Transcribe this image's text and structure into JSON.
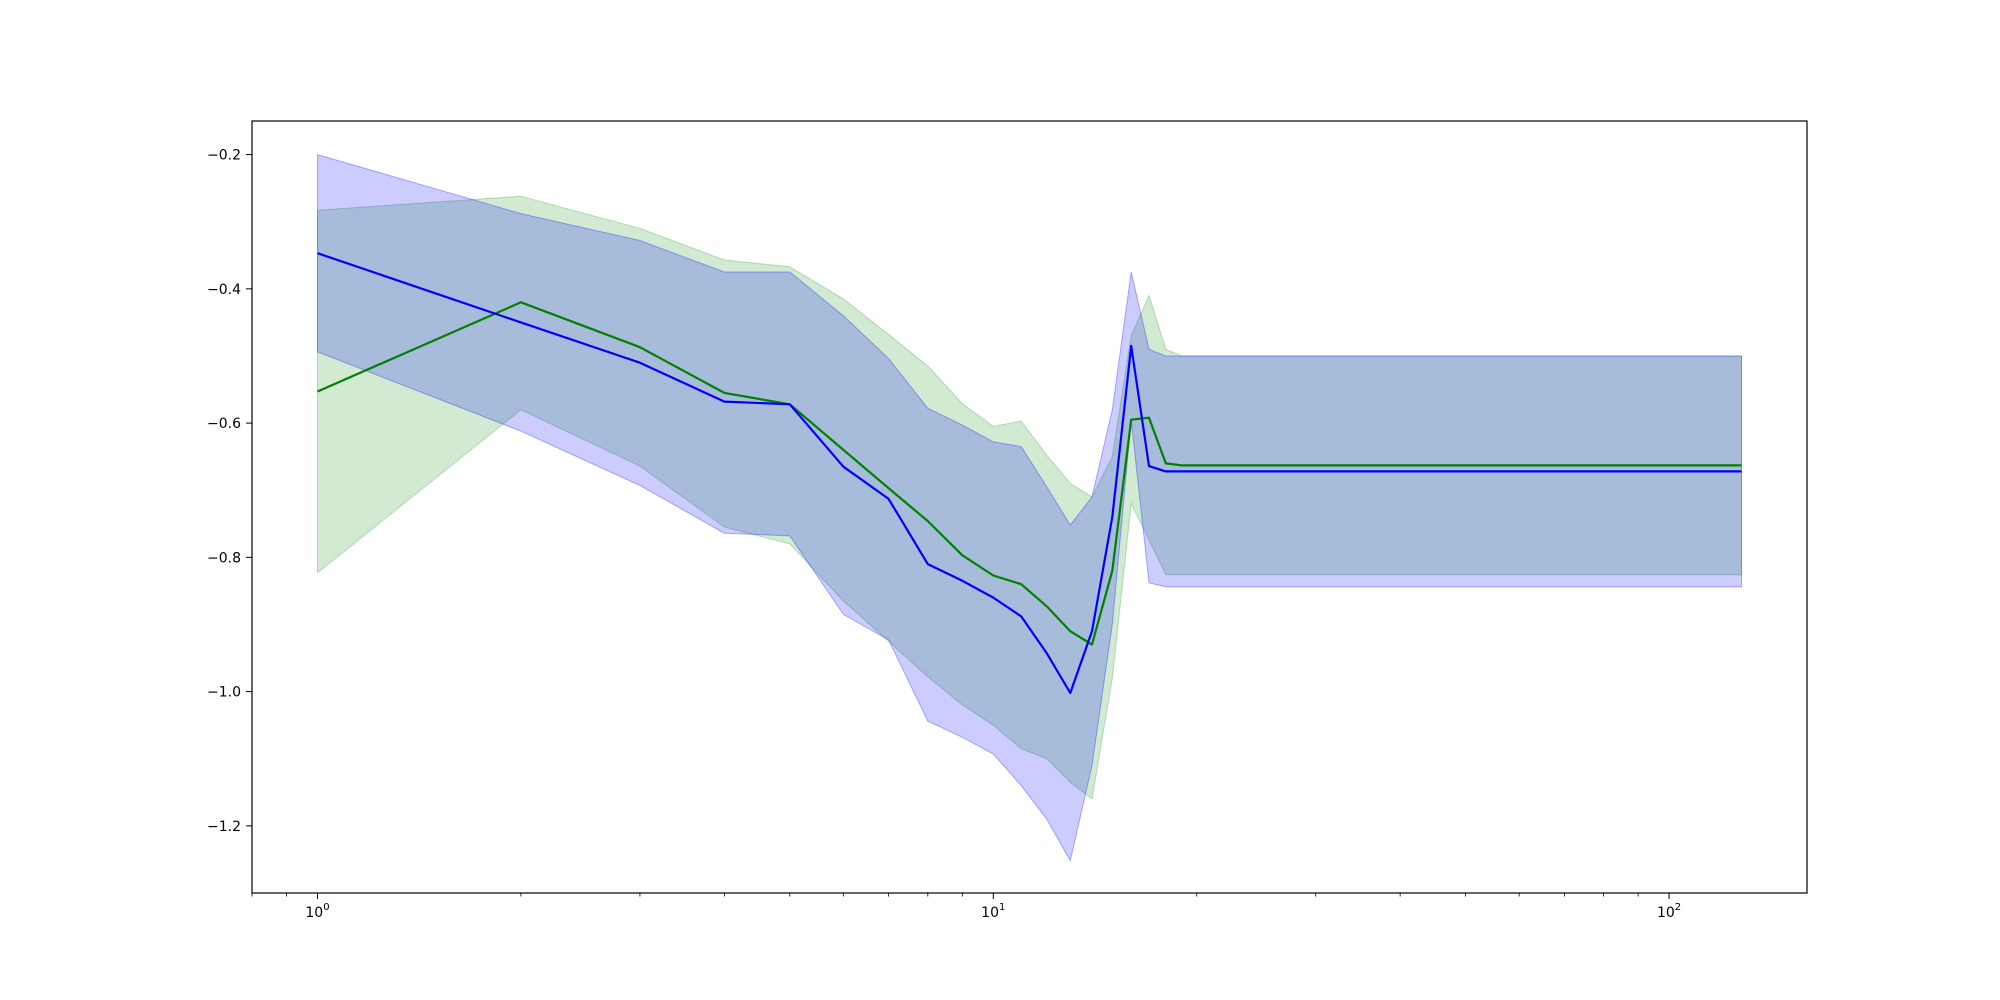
{
  "chart_data": {
    "type": "line",
    "title": "",
    "xlabel": "",
    "ylabel": "",
    "xscale": "log",
    "xlim": [
      0.8,
      160
    ],
    "ylim": [
      -1.3,
      -0.15
    ],
    "grid": false,
    "legend": "none",
    "x_ticks": [
      {
        "value": 1,
        "base": "10",
        "exp": "0"
      },
      {
        "value": 10,
        "base": "10",
        "exp": "1"
      },
      {
        "value": 100,
        "base": "10",
        "exp": "2"
      }
    ],
    "y_ticks": [
      {
        "value": -0.2,
        "label": "−0.2"
      },
      {
        "value": -0.4,
        "label": "−0.4"
      },
      {
        "value": -0.6,
        "label": "−0.6"
      },
      {
        "value": -0.8,
        "label": "−0.8"
      },
      {
        "value": -1.0,
        "label": "−1.0"
      },
      {
        "value": -1.2,
        "label": "−1.2"
      }
    ],
    "x": [
      1,
      2,
      3,
      4,
      5,
      6,
      7,
      8,
      9,
      10,
      11,
      12,
      13,
      14,
      15,
      16,
      17,
      18,
      19,
      128
    ],
    "series": [
      {
        "color": "#008000",
        "band_color": "#2ca02c",
        "values": [
          -0.553,
          -0.42,
          -0.487,
          -0.555,
          -0.572,
          -0.64,
          -0.697,
          -0.746,
          -0.797,
          -0.827,
          -0.84,
          -0.873,
          -0.91,
          -0.93,
          -0.82,
          -0.595,
          -0.592,
          -0.66,
          -0.663,
          -0.663
        ],
        "upper": [
          -0.283,
          -0.262,
          -0.31,
          -0.357,
          -0.367,
          -0.415,
          -0.468,
          -0.515,
          -0.571,
          -0.605,
          -0.597,
          -0.648,
          -0.69,
          -0.71,
          -0.65,
          -0.47,
          -0.41,
          -0.49,
          -0.5,
          -0.5
        ],
        "lower": [
          -0.823,
          -0.58,
          -0.664,
          -0.755,
          -0.78,
          -0.865,
          -0.925,
          -0.978,
          -1.02,
          -1.05,
          -1.085,
          -1.1,
          -1.135,
          -1.16,
          -0.98,
          -0.72,
          -0.774,
          -0.826,
          -0.826,
          -0.826
        ]
      },
      {
        "color": "#0000ff",
        "band_color": "#0000ff",
        "values": [
          -0.347,
          -0.45,
          -0.51,
          -0.568,
          -0.572,
          -0.665,
          -0.713,
          -0.81,
          -0.835,
          -0.86,
          -0.888,
          -0.943,
          -1.002,
          -0.91,
          -0.74,
          -0.485,
          -0.664,
          -0.672,
          -0.672,
          -0.672
        ],
        "upper": [
          -0.2,
          -0.288,
          -0.328,
          -0.375,
          -0.375,
          -0.44,
          -0.504,
          -0.578,
          -0.603,
          -0.628,
          -0.635,
          -0.695,
          -0.752,
          -0.71,
          -0.58,
          -0.375,
          -0.49,
          -0.5,
          -0.5,
          -0.5
        ],
        "lower": [
          -0.494,
          -0.612,
          -0.693,
          -0.764,
          -0.768,
          -0.885,
          -0.923,
          -1.044,
          -1.068,
          -1.093,
          -1.14,
          -1.19,
          -1.252,
          -1.11,
          -0.9,
          -0.595,
          -0.838,
          -0.844,
          -0.844,
          -0.844
        ]
      }
    ]
  }
}
